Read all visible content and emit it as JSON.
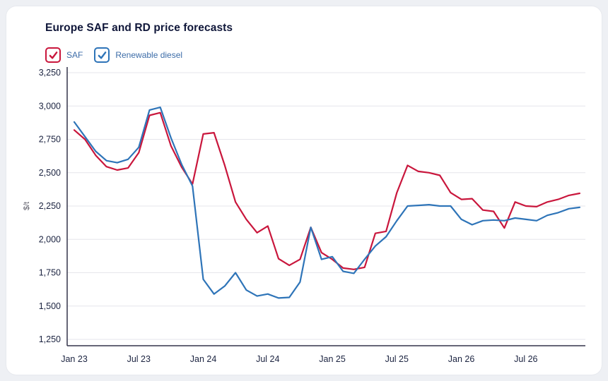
{
  "page": {
    "title": "Europe SAF and RD price forecasts"
  },
  "legend": [
    {
      "label": "SAF",
      "color": "#c9163c"
    },
    {
      "label": "Renewable diesel",
      "color": "#2e74b8"
    }
  ],
  "colors": {
    "saf_line": "#c9163c",
    "rd_line": "#2e74b8",
    "axis": "#33334a",
    "gridline": "#e6e6eb",
    "tick_text": "#1b2340"
  },
  "chart_data": {
    "type": "line",
    "title": "Europe SAF and RD price forecasts",
    "xlabel": "",
    "ylabel": "$/t",
    "ylim": [
      1250,
      3250
    ],
    "grid": "horizontal",
    "legend_position": "top-left",
    "x_start": "Jan 23",
    "x_interval": "monthly",
    "y_ticks": [
      {
        "v": 1250,
        "label": "1,250"
      },
      {
        "v": 1500,
        "label": "1,500"
      },
      {
        "v": 1750,
        "label": "1,750"
      },
      {
        "v": 2000,
        "label": "2,000"
      },
      {
        "v": 2250,
        "label": "2,250"
      },
      {
        "v": 2500,
        "label": "2,500"
      },
      {
        "v": 2750,
        "label": "2,750"
      },
      {
        "v": 3000,
        "label": "3,000"
      },
      {
        "v": 3250,
        "label": "3,250"
      }
    ],
    "x_ticks": [
      {
        "i": 0,
        "label": "Jan 23"
      },
      {
        "i": 6,
        "label": "Jul 23"
      },
      {
        "i": 12,
        "label": "Jan 24"
      },
      {
        "i": 18,
        "label": "Jul 24"
      },
      {
        "i": 24,
        "label": "Jan 25"
      },
      {
        "i": 30,
        "label": "Jul 25"
      },
      {
        "i": 36,
        "label": "Jan 26"
      },
      {
        "i": 42,
        "label": "Jul 26"
      }
    ],
    "series": [
      {
        "name": "SAF",
        "color": "#c9163c",
        "values": [
          2820,
          2750,
          2630,
          2545,
          2520,
          2535,
          2650,
          2930,
          2950,
          2700,
          2540,
          2415,
          2790,
          2800,
          2555,
          2280,
          2150,
          2050,
          2100,
          1855,
          1805,
          1850,
          2090,
          1900,
          1850,
          1785,
          1775,
          1790,
          2045,
          2060,
          2350,
          2555,
          2510,
          2500,
          2480,
          2350,
          2300,
          2305,
          2220,
          2210,
          2085,
          2280,
          2250,
          2245,
          2280,
          2300,
          2330,
          2345
        ]
      },
      {
        "name": "Renewable diesel",
        "color": "#2e74b8",
        "values": [
          2880,
          2770,
          2660,
          2590,
          2575,
          2600,
          2690,
          2970,
          2990,
          2760,
          2560,
          2400,
          1700,
          1590,
          1650,
          1750,
          1620,
          1575,
          1590,
          1560,
          1565,
          1680,
          2090,
          1850,
          1870,
          1760,
          1745,
          1850,
          1950,
          2020,
          2140,
          2250,
          2255,
          2260,
          2250,
          2250,
          2150,
          2110,
          2140,
          2145,
          2140,
          2160,
          2150,
          2140,
          2180,
          2200,
          2230,
          2240
        ]
      }
    ]
  }
}
